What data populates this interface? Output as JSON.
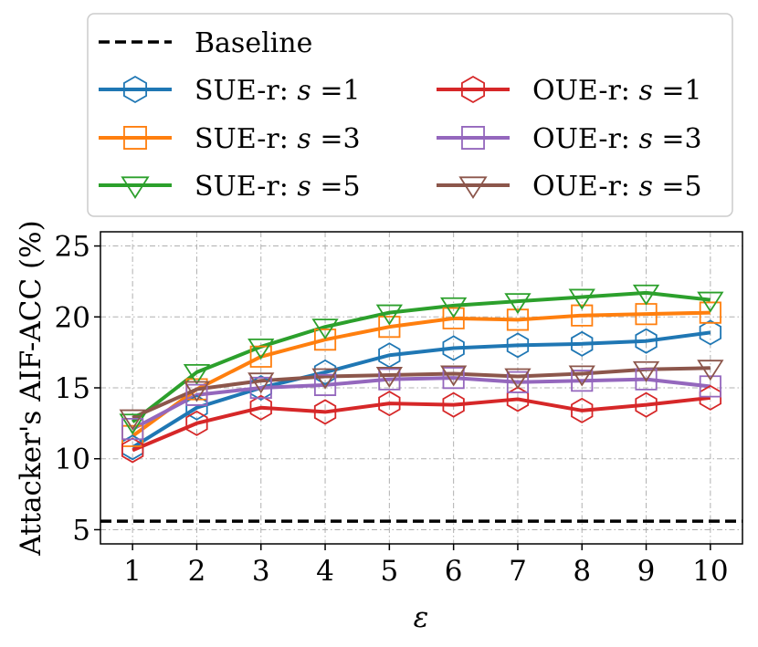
{
  "chart_data": {
    "type": "line",
    "xlabel": "ε",
    "ylabel": "Attacker's AIF-ACC (%)",
    "x": [
      1,
      2,
      3,
      4,
      5,
      6,
      7,
      8,
      9,
      10
    ],
    "xlim": [
      0.5,
      10.5
    ],
    "ylim": [
      4,
      26
    ],
    "xticks": [
      1,
      2,
      3,
      4,
      5,
      6,
      7,
      8,
      9,
      10
    ],
    "yticks": [
      5,
      10,
      15,
      20,
      25
    ],
    "grid": true,
    "legend_position": "above",
    "baseline": {
      "name": "Baseline",
      "value": 5.6,
      "color": "#000000"
    },
    "series": [
      {
        "name": "SUE-r: s =1",
        "prefix": "SUE-r: ",
        "var": "s",
        "suffix": " =1",
        "color": "#1f77b4",
        "marker": "hexagon",
        "values": [
          10.8,
          13.6,
          15.0,
          16.1,
          17.3,
          17.8,
          18.0,
          18.1,
          18.3,
          18.9
        ]
      },
      {
        "name": "SUE-r: s =3",
        "prefix": "SUE-r: ",
        "var": "s",
        "suffix": " =3",
        "color": "#ff7f0e",
        "marker": "square",
        "values": [
          11.6,
          14.9,
          17.2,
          18.4,
          19.3,
          19.9,
          19.8,
          20.1,
          20.2,
          20.3
        ]
      },
      {
        "name": "SUE-r: s =5",
        "prefix": "SUE-r: ",
        "var": "s",
        "suffix": " =5",
        "color": "#2ca02c",
        "marker": "triangle-down",
        "values": [
          12.6,
          16.1,
          17.9,
          19.3,
          20.3,
          20.8,
          21.1,
          21.4,
          21.7,
          21.2
        ]
      },
      {
        "name": "OUE-r: s =1",
        "prefix": "OUE-r: ",
        "var": "s",
        "suffix": " =1",
        "color": "#d62728",
        "marker": "hexagon",
        "values": [
          10.6,
          12.5,
          13.6,
          13.3,
          13.9,
          13.8,
          14.2,
          13.4,
          13.8,
          14.3
        ]
      },
      {
        "name": "OUE-r: s =3",
        "prefix": "OUE-r: ",
        "var": "s",
        "suffix": " =3",
        "color": "#9467bd",
        "marker": "square",
        "values": [
          12.1,
          14.5,
          15.0,
          15.2,
          15.6,
          15.7,
          15.4,
          15.5,
          15.6,
          15.1
        ]
      },
      {
        "name": "OUE-r: s =5",
        "prefix": "OUE-r: ",
        "var": "s",
        "suffix": " =5",
        "color": "#8c564b",
        "marker": "triangle-down",
        "values": [
          12.9,
          14.9,
          15.5,
          15.8,
          15.9,
          16.0,
          15.8,
          16.0,
          16.3,
          16.4
        ]
      }
    ]
  }
}
